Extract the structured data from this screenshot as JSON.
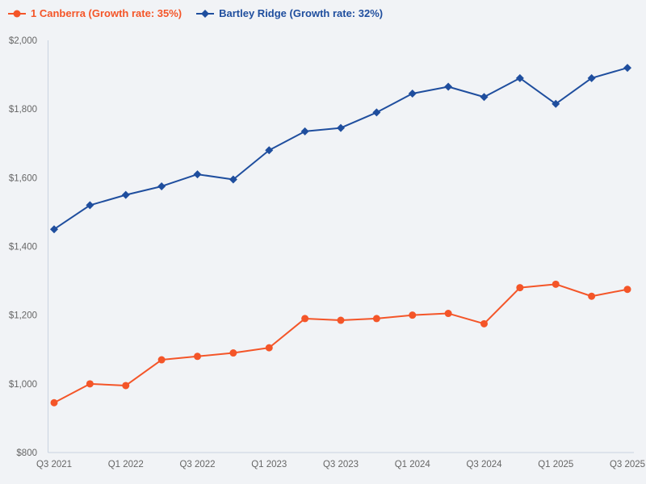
{
  "chart_data": {
    "type": "line",
    "title": "",
    "xlabel": "",
    "ylabel": "",
    "x": [
      "Q3 2021",
      "Q4 2021",
      "Q1 2022",
      "Q2 2022",
      "Q3 2022",
      "Q4 2022",
      "Q1 2023",
      "Q2 2023",
      "Q3 2023",
      "Q4 2023",
      "Q1 2024",
      "Q2 2024",
      "Q3 2024",
      "Q4 2024",
      "Q1 2025",
      "Q2 2025",
      "Q3 2025"
    ],
    "x_tick_labels": [
      "Q3 2021",
      "Q1 2022",
      "Q3 2022",
      "Q1 2023",
      "Q3 2023",
      "Q1 2024",
      "Q3 2024",
      "Q1 2025",
      "Q3 2025"
    ],
    "x_tick_every": 2,
    "series": [
      {
        "name": "1 Canberra (Growth rate: 35%)",
        "marker": "circle",
        "color": "#f45528",
        "values": [
          945,
          1000,
          995,
          1070,
          1080,
          1090,
          1105,
          1190,
          1185,
          1190,
          1200,
          1205,
          1175,
          1280,
          1290,
          1255,
          1275
        ]
      },
      {
        "name": "Bartley Ridge (Growth rate: 32%)",
        "marker": "diamond",
        "color": "#1f4e9e",
        "values": [
          1450,
          1520,
          1550,
          1575,
          1610,
          1595,
          1680,
          1735,
          1745,
          1790,
          1845,
          1865,
          1835,
          1890,
          1815,
          1890,
          1920
        ]
      }
    ],
    "ylim": [
      800,
      2000
    ],
    "y_tick_values": [
      800,
      1000,
      1200,
      1400,
      1600,
      1800,
      2000
    ],
    "y_tick_labels": [
      "$800",
      "$1,000",
      "$1,200",
      "$1,400",
      "$1,600",
      "$1,800",
      "$2,000"
    ],
    "grid": false,
    "legend_position": "top-left",
    "colors": {
      "background": "#f1f3f6",
      "axis_line": "#c9d3e0",
      "tick_text": "#666666"
    }
  }
}
